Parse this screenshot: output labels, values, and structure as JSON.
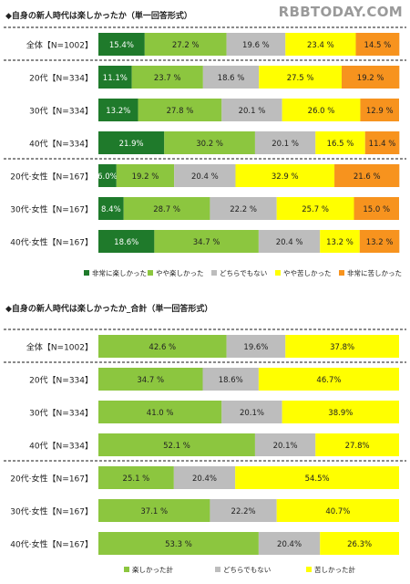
{
  "watermark": "RBBTODAY.COM",
  "colors": {
    "very_fun": "#1f7a2b",
    "somewhat_fun": "#8cc63f",
    "neutral": "#bdbdbd",
    "somewhat_hard": "#ffff00",
    "very_hard": "#f7931e",
    "fun_total": "#8cc63f",
    "hard_total": "#ffff00"
  },
  "chart_data": [
    {
      "type": "bar",
      "stacked": true,
      "orientation": "horizontal",
      "title": "◆自身の新人時代は楽しかったか（単一回答形式）",
      "categories": [
        "全体【N=1002】",
        "20代【N=334】",
        "30代【N=334】",
        "40代【N=334】",
        "20代·女性【N=167】",
        "30代·女性【N=167】",
        "40代·女性【N=167】"
      ],
      "series": [
        {
          "name": "非常に楽しかった",
          "values": [
            15.4,
            11.1,
            13.2,
            21.9,
            6.0,
            8.4,
            18.6
          ],
          "labels": [
            "15.4%",
            "11.1%",
            "13.2%",
            "21.9%",
            "6.0%",
            "8.4%",
            "18.6%"
          ]
        },
        {
          "name": "やや楽しかった",
          "values": [
            27.2,
            23.7,
            27.8,
            30.2,
            19.2,
            28.7,
            34.7
          ],
          "labels": [
            "27.2 %",
            "23.7 %",
            "27.8 %",
            "30.2 %",
            "19.2 %",
            "28.7 %",
            "34.7 %"
          ]
        },
        {
          "name": "どちらでもない",
          "values": [
            19.6,
            18.6,
            20.1,
            20.1,
            20.4,
            22.2,
            20.4
          ],
          "labels": [
            "19.6 %",
            "18.6 %",
            "20.1 %",
            "20.1 %",
            "20.4 %",
            "22.2 %",
            "20.4 %"
          ]
        },
        {
          "name": "やや苦しかった",
          "values": [
            23.4,
            27.5,
            26.0,
            16.5,
            32.9,
            25.7,
            13.2
          ],
          "labels": [
            "23.4 %",
            "27.5 %",
            "26.0 %",
            "16.5 %",
            "32.9 %",
            "25.7 %",
            "13.2 %"
          ]
        },
        {
          "name": "非常に苦しかった",
          "values": [
            14.5,
            19.2,
            12.9,
            11.4,
            21.6,
            15.0,
            13.2
          ],
          "labels": [
            "14.5 %",
            "19.2 %",
            "12.9 %",
            "11.4 %",
            "21.6 %",
            "15.0 %",
            "13.2 %"
          ]
        }
      ],
      "xlim": [
        0,
        100
      ],
      "legend": "bottom"
    },
    {
      "type": "bar",
      "stacked": true,
      "orientation": "horizontal",
      "title": "◆自身の新人時代は楽しかったか_合計（単一回答形式）",
      "categories": [
        "全体【N=1002】",
        "20代【N=334】",
        "30代【N=334】",
        "40代【N=334】",
        "20代·女性【N=167】",
        "30代·女性【N=167】",
        "40代·女性【N=167】"
      ],
      "series": [
        {
          "name": "楽しかった計",
          "values": [
            42.6,
            34.7,
            41.0,
            52.1,
            25.1,
            37.1,
            53.3
          ],
          "labels": [
            "42.6 %",
            "34.7 %",
            "41.0 %",
            "52.1 %",
            "25.1 %",
            "37.1 %",
            "53.3 %"
          ]
        },
        {
          "name": "どちらでもない",
          "values": [
            19.6,
            18.6,
            20.1,
            20.1,
            20.4,
            22.2,
            20.4
          ],
          "labels": [
            "19.6%",
            "18.6%",
            "20.1%",
            "20.1%",
            "20.4%",
            "22.2%",
            "20.4%"
          ]
        },
        {
          "name": "苦しかった計",
          "values": [
            37.8,
            46.7,
            38.9,
            27.8,
            54.5,
            40.7,
            26.3
          ],
          "labels": [
            "37.8%",
            "46.7%",
            "38.9%",
            "27.8%",
            "54.5%",
            "40.7%",
            "26.3%"
          ]
        }
      ],
      "xlim": [
        0,
        100
      ],
      "legend": "bottom"
    }
  ]
}
